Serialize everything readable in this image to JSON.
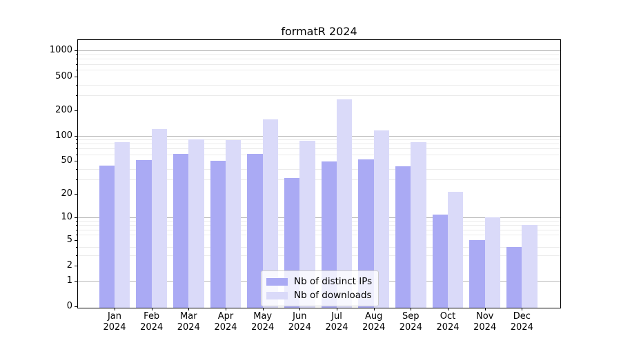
{
  "chart_data": {
    "type": "bar",
    "title": "formatR 2024",
    "year": "2024",
    "categories": [
      {
        "month": "Jan",
        "year": "2024"
      },
      {
        "month": "Feb",
        "year": "2024"
      },
      {
        "month": "Mar",
        "year": "2024"
      },
      {
        "month": "Apr",
        "year": "2024"
      },
      {
        "month": "May",
        "year": "2024"
      },
      {
        "month": "Jun",
        "year": "2024"
      },
      {
        "month": "Jul",
        "year": "2024"
      },
      {
        "month": "Aug",
        "year": "2024"
      },
      {
        "month": "Sep",
        "year": "2024"
      },
      {
        "month": "Oct",
        "year": "2024"
      },
      {
        "month": "Nov",
        "year": "2024"
      },
      {
        "month": "Dec",
        "year": "2024"
      }
    ],
    "series": [
      {
        "name": "Nb of distinct IPs",
        "color": "#aaaaf4",
        "values": [
          44,
          51,
          61,
          50,
          61,
          31,
          49,
          52,
          43,
          11,
          5,
          4
        ]
      },
      {
        "name": "Nb of downloads",
        "color": "#dadaf9",
        "values": [
          84,
          120,
          91,
          88,
          155,
          87,
          270,
          115,
          84,
          21,
          10,
          8
        ]
      }
    ],
    "y_axis": {
      "scale": "log10(x+1)",
      "ticks": [
        0,
        1,
        2,
        5,
        10,
        20,
        50,
        100,
        200,
        500,
        1000
      ],
      "major_gridlines": [
        1,
        10,
        100,
        1000
      ],
      "minor_gridlines": [
        3,
        4,
        6,
        7,
        8,
        9,
        30,
        40,
        60,
        70,
        80,
        90,
        300,
        400,
        600,
        700,
        800,
        900
      ],
      "top_value": 1360
    },
    "grid": true,
    "legend_position": "lower center"
  },
  "colors": {
    "major_grid": "#b8b8b8",
    "minor_grid": "#ebebeb",
    "spine": "#000000",
    "background": "#ffffff"
  }
}
